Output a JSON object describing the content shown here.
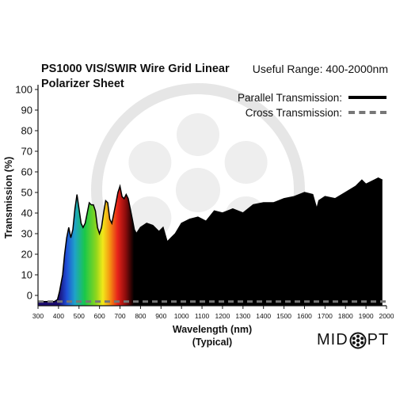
{
  "chart_data": {
    "type": "area",
    "title": "PS1000 VIS/SWIR Wire Grid Linear Polarizer Sheet",
    "subtitle": "Useful Range: 400-2000nm",
    "xlabel": "Wavelength (nm)",
    "xlabel_sub": "(Typical)",
    "ylabel": "Transmission (%)",
    "xlim": [
      300,
      2000
    ],
    "ylim": [
      -5,
      100
    ],
    "xticks": [
      300,
      400,
      500,
      600,
      700,
      800,
      900,
      1000,
      1100,
      1200,
      1300,
      1400,
      1500,
      1600,
      1700,
      1800,
      1900,
      2000
    ],
    "yticks": [
      0,
      10,
      20,
      30,
      40,
      50,
      60,
      70,
      80,
      90,
      100
    ],
    "grid": false,
    "legend_position": "top-right",
    "series": [
      {
        "name": "Parallel Transmission:",
        "style": "solid",
        "color": "#000000",
        "x": [
          300,
          380,
          395,
          405,
          420,
          430,
          440,
          450,
          460,
          470,
          480,
          490,
          500,
          510,
          520,
          530,
          540,
          550,
          560,
          570,
          580,
          590,
          600,
          610,
          620,
          630,
          640,
          650,
          660,
          670,
          680,
          690,
          700,
          710,
          720,
          730,
          740,
          750,
          760,
          770,
          780,
          800,
          830,
          860,
          890,
          910,
          930,
          950,
          970,
          1000,
          1040,
          1080,
          1120,
          1160,
          1200,
          1250,
          1300,
          1350,
          1400,
          1450,
          1500,
          1550,
          1600,
          1640,
          1660,
          1670,
          1700,
          1750,
          1800,
          1850,
          1880,
          1900,
          1940,
          1960,
          1980
        ],
        "values": [
          -3,
          -3,
          -2,
          2,
          10,
          20,
          28,
          33,
          28,
          32,
          42,
          49,
          42,
          35,
          33,
          35,
          40,
          45,
          44,
          44,
          41,
          33,
          30,
          33,
          40,
          46,
          45,
          37,
          35,
          40,
          45,
          50,
          53,
          48,
          47,
          49,
          47,
          42,
          37,
          32,
          30,
          33,
          35,
          34,
          31,
          33,
          26,
          28,
          30,
          35,
          37,
          38,
          36,
          41,
          40,
          42,
          40,
          44,
          45,
          45,
          47,
          48,
          50,
          49,
          42,
          46,
          48,
          47,
          50,
          53,
          56,
          54,
          56,
          57,
          56
        ]
      },
      {
        "name": "Cross Transmission:",
        "style": "dashed",
        "color": "#777777",
        "x": [
          300,
          2000
        ],
        "values": [
          -3,
          -3
        ]
      }
    ]
  },
  "logo": {
    "left": "MID",
    "right": "PT"
  }
}
